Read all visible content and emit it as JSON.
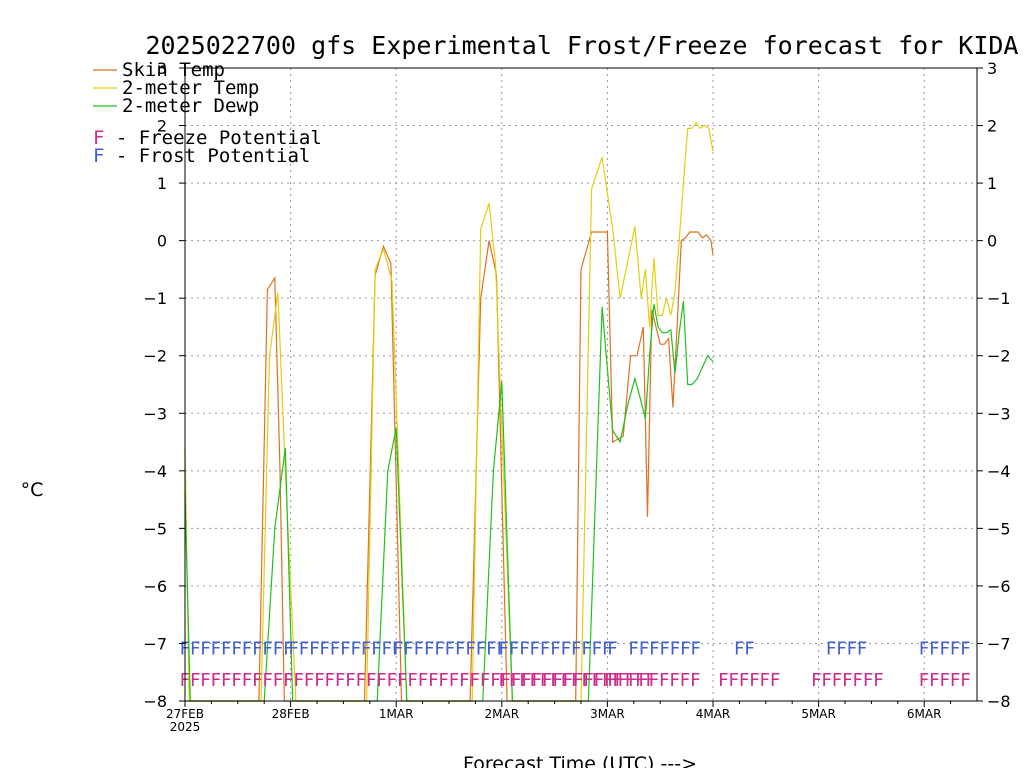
{
  "chart_data": {
    "type": "line",
    "title": "2025022700 gfs Experimental Frost/Freeze forecast for KIDA",
    "xlabel": "Forecast Time (UTC) --->",
    "ylabel": "°C",
    "ylim": [
      -8,
      3
    ],
    "xlim": [
      0,
      7.5
    ],
    "yticks": [
      3,
      2,
      1,
      0,
      -1,
      -2,
      -3,
      -4,
      -5,
      -6,
      -7,
      -8
    ],
    "grid": true,
    "x_tick_labels": [
      {
        "x": 0,
        "label": "27FEB",
        "sub": "2025"
      },
      {
        "x": 1,
        "label": "28FEB"
      },
      {
        "x": 2,
        "label": "1MAR"
      },
      {
        "x": 3,
        "label": "2MAR"
      },
      {
        "x": 4,
        "label": "3MAR"
      },
      {
        "x": 5,
        "label": "4MAR"
      },
      {
        "x": 6,
        "label": "5MAR"
      },
      {
        "x": 7,
        "label": "6MAR"
      }
    ],
    "legend": {
      "placement": "top-left",
      "items": [
        {
          "label": "Skin Temp",
          "color": "#e07020"
        },
        {
          "label": "2-meter Temp",
          "color": "#e0d010"
        },
        {
          "label": "2-meter Dewp",
          "color": "#20c020"
        }
      ],
      "potentials": [
        {
          "symbol": "F",
          "label": " - Freeze Potential",
          "color": "#d02a8a"
        },
        {
          "symbol": "F",
          "label": " - Frost Potential",
          "color": "#4060d0"
        }
      ]
    },
    "series": [
      {
        "name": "Skin Temp",
        "color": "#e07020",
        "x": [
          0.0,
          0.04,
          0.7,
          0.78,
          0.85,
          0.9,
          0.94,
          1.0,
          1.7,
          1.8,
          1.88,
          1.95,
          2.05,
          2.7,
          2.8,
          2.88,
          2.95,
          3.05,
          3.7,
          3.75,
          3.85,
          4.0,
          4.05,
          4.15,
          4.22,
          4.28,
          4.34,
          4.38,
          4.42,
          4.46,
          4.5,
          4.54,
          4.58,
          4.62,
          4.66,
          4.7,
          4.74,
          4.78,
          4.82,
          4.86,
          4.9,
          4.94,
          4.98,
          5.0
        ],
        "y": [
          -8.0,
          -8.0,
          -8.0,
          -0.85,
          -0.65,
          -4.0,
          -8.0,
          -8.0,
          -8.0,
          -0.6,
          -0.1,
          -0.4,
          -8.0,
          -8.0,
          -1.0,
          0.0,
          -0.6,
          -8.0,
          -8.0,
          -0.5,
          0.15,
          0.15,
          -3.5,
          -3.4,
          -2.0,
          -2.0,
          -1.5,
          -4.8,
          -1.2,
          -1.5,
          -1.8,
          -1.8,
          -1.7,
          -2.9,
          -1.5,
          0.0,
          0.05,
          0.15,
          0.15,
          0.15,
          0.05,
          0.1,
          0.0,
          -0.25
        ]
      },
      {
        "name": "2-meter Temp",
        "color": "#e0d010",
        "x": [
          0.0,
          0.04,
          0.08,
          0.72,
          0.8,
          0.88,
          0.95,
          1.05,
          1.72,
          1.8,
          1.88,
          1.96,
          2.1,
          2.72,
          2.8,
          2.88,
          2.94,
          3.1,
          3.75,
          3.85,
          3.95,
          4.05,
          4.12,
          4.2,
          4.26,
          4.32,
          4.36,
          4.4,
          4.44,
          4.48,
          4.52,
          4.56,
          4.6,
          4.64,
          4.68,
          4.72,
          4.76,
          4.8,
          4.84,
          4.88,
          4.92,
          4.96,
          5.0
        ],
        "y": [
          -3.6,
          -8.0,
          -8.0,
          -8.0,
          -2.0,
          -0.9,
          -4.0,
          -8.0,
          -8.0,
          -0.5,
          -0.15,
          -0.7,
          -8.0,
          -8.0,
          0.2,
          0.65,
          -0.4,
          -8.0,
          -8.0,
          0.9,
          1.45,
          0.2,
          -1.0,
          -0.3,
          0.25,
          -1.0,
          -0.5,
          -1.5,
          -0.3,
          -1.3,
          -1.3,
          -1.0,
          -1.3,
          -0.9,
          0.0,
          1.0,
          1.95,
          1.95,
          2.05,
          1.95,
          2.0,
          1.95,
          1.55
        ]
      },
      {
        "name": "2-meter Dewp",
        "color": "#20c020",
        "x": [
          0.0,
          0.05,
          0.75,
          0.85,
          0.95,
          1.02,
          1.82,
          1.92,
          2.0,
          2.1,
          2.82,
          2.92,
          3.0,
          3.1,
          3.82,
          3.95,
          4.05,
          4.12,
          4.2,
          4.26,
          4.32,
          4.36,
          4.4,
          4.44,
          4.48,
          4.52,
          4.56,
          4.6,
          4.64,
          4.68,
          4.72,
          4.76,
          4.8,
          4.85,
          4.9,
          4.95,
          5.0
        ],
        "y": [
          -4.4,
          -8.0,
          -8.0,
          -5.0,
          -3.6,
          -8.0,
          -8.0,
          -4.0,
          -3.25,
          -8.0,
          -8.0,
          -4.0,
          -2.45,
          -8.0,
          -8.0,
          -1.15,
          -3.3,
          -3.5,
          -2.8,
          -2.4,
          -2.8,
          -3.1,
          -2.0,
          -1.1,
          -1.5,
          -1.6,
          -1.6,
          -1.55,
          -2.3,
          -1.6,
          -1.05,
          -2.5,
          -2.5,
          -2.4,
          -2.2,
          -2.0,
          -2.1
        ]
      }
    ],
    "frost_potential": {
      "color": "#4060d0",
      "y": -7.05,
      "groups": [
        {
          "text": "FFFFFFFFFFF",
          "x": -0.05
        },
        {
          "text": "FFFFFFFFFFF",
          "x": 0.98
        },
        {
          "text": "FFFFFFFFFFF",
          "x": 1.97
        },
        {
          "text": "FFFFFFFFFFF",
          "x": 2.97
        },
        {
          "text": "F",
          "x": 4.0
        },
        {
          "text": "FFFFFFF",
          "x": 4.2
        },
        {
          "text": "FF",
          "x": 5.2
        },
        {
          "text": "FFFF",
          "x": 6.07
        },
        {
          "text": "FFFFF",
          "x": 6.95
        }
      ]
    },
    "freeze_potential": {
      "color": "#d02a8a",
      "y": -7.6,
      "groups": [
        {
          "text": "FFFFFFFFFFFFFFFFFFFFFFFFFFFFFFFFFFFFFFFFFFFFFF",
          "x": -0.05
        },
        {
          "text": "FFFFFFFFFFFF",
          "x": 2.97
        },
        {
          "text": "FFFFFFFFF",
          "x": 4.0
        },
        {
          "text": "FFFFFF",
          "x": 5.05
        },
        {
          "text": "FFFFFFF",
          "x": 5.93
        },
        {
          "text": "FFFFF",
          "x": 6.95
        }
      ]
    }
  }
}
